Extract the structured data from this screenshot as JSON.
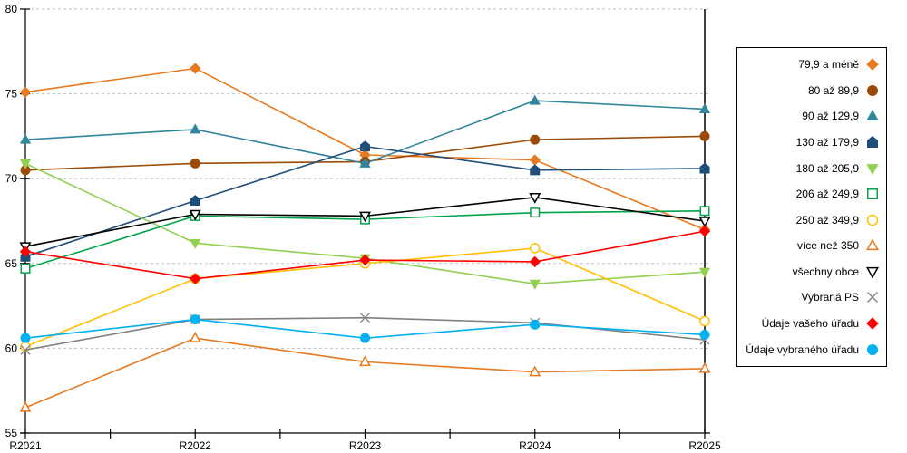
{
  "chart_data": {
    "type": "line",
    "title": "",
    "xlabel": "",
    "ylabel": "",
    "categories": [
      "R2021",
      "R2022",
      "R2023",
      "R2024",
      "R2025"
    ],
    "ylim": [
      55,
      80
    ],
    "y_ticks": [
      55,
      60,
      65,
      70,
      75,
      80
    ],
    "grid": "horizontal-dashed",
    "legend_position": "right-outside",
    "right_boundary_line_at": "R2025",
    "series": [
      {
        "name": "79,9 a méně",
        "color": "#E8791E",
        "marker": "diamond",
        "filled": true,
        "values": [
          75.1,
          76.5,
          71.4,
          71.1,
          67.0
        ]
      },
      {
        "name": "80 až 89,9",
        "color": "#9C4A06",
        "marker": "circle",
        "filled": true,
        "values": [
          70.5,
          70.9,
          71.0,
          72.3,
          72.5
        ]
      },
      {
        "name": "90 až 129,9",
        "color": "#31859C",
        "marker": "triangle-up",
        "filled": true,
        "values": [
          72.3,
          72.9,
          70.9,
          74.6,
          74.1
        ]
      },
      {
        "name": "130 až 179,9",
        "color": "#1F4E79",
        "marker": "pentagon",
        "filled": true,
        "values": [
          65.4,
          68.7,
          71.9,
          70.5,
          70.6
        ]
      },
      {
        "name": "180 až 205,9",
        "color": "#92D050",
        "marker": "triangle-down",
        "filled": true,
        "values": [
          70.9,
          66.2,
          65.3,
          63.8,
          64.5
        ]
      },
      {
        "name": "206 až 249,9",
        "color": "#00A44A",
        "marker": "square",
        "filled": false,
        "values": [
          64.7,
          67.8,
          67.6,
          68.0,
          68.1
        ]
      },
      {
        "name": "250 až 349,9",
        "color": "#FFC000",
        "marker": "circle",
        "filled": false,
        "values": [
          60.1,
          64.1,
          65.0,
          65.9,
          61.6
        ]
      },
      {
        "name": "více než 350",
        "color": "#E8791E",
        "marker": "triangle-up",
        "filled": false,
        "values": [
          56.5,
          60.6,
          59.2,
          58.6,
          58.8
        ]
      },
      {
        "name": "všechny obce",
        "color": "#000000",
        "marker": "triangle-down",
        "filled": false,
        "values": [
          66.0,
          67.9,
          67.8,
          68.9,
          67.5
        ]
      },
      {
        "name": "Vybraná PS",
        "color": "#808080",
        "marker": "x",
        "filled": false,
        "values": [
          59.9,
          61.7,
          61.8,
          61.5,
          60.5
        ]
      },
      {
        "name": "Údaje vašeho úřadu",
        "color": "#FF0000",
        "marker": "diamond",
        "filled": true,
        "values": [
          65.7,
          64.1,
          65.2,
          65.1,
          66.9
        ]
      },
      {
        "name": "Údaje vybraného úřadu",
        "color": "#00B0F0",
        "marker": "circle",
        "filled": true,
        "values": [
          60.6,
          61.7,
          60.6,
          61.4,
          60.8
        ]
      }
    ]
  },
  "colors": {
    "background": "#FFFFFF",
    "axis": "#000000",
    "gridline": "#BFBFBF",
    "legend_border": "#000000",
    "text": "#000000"
  }
}
